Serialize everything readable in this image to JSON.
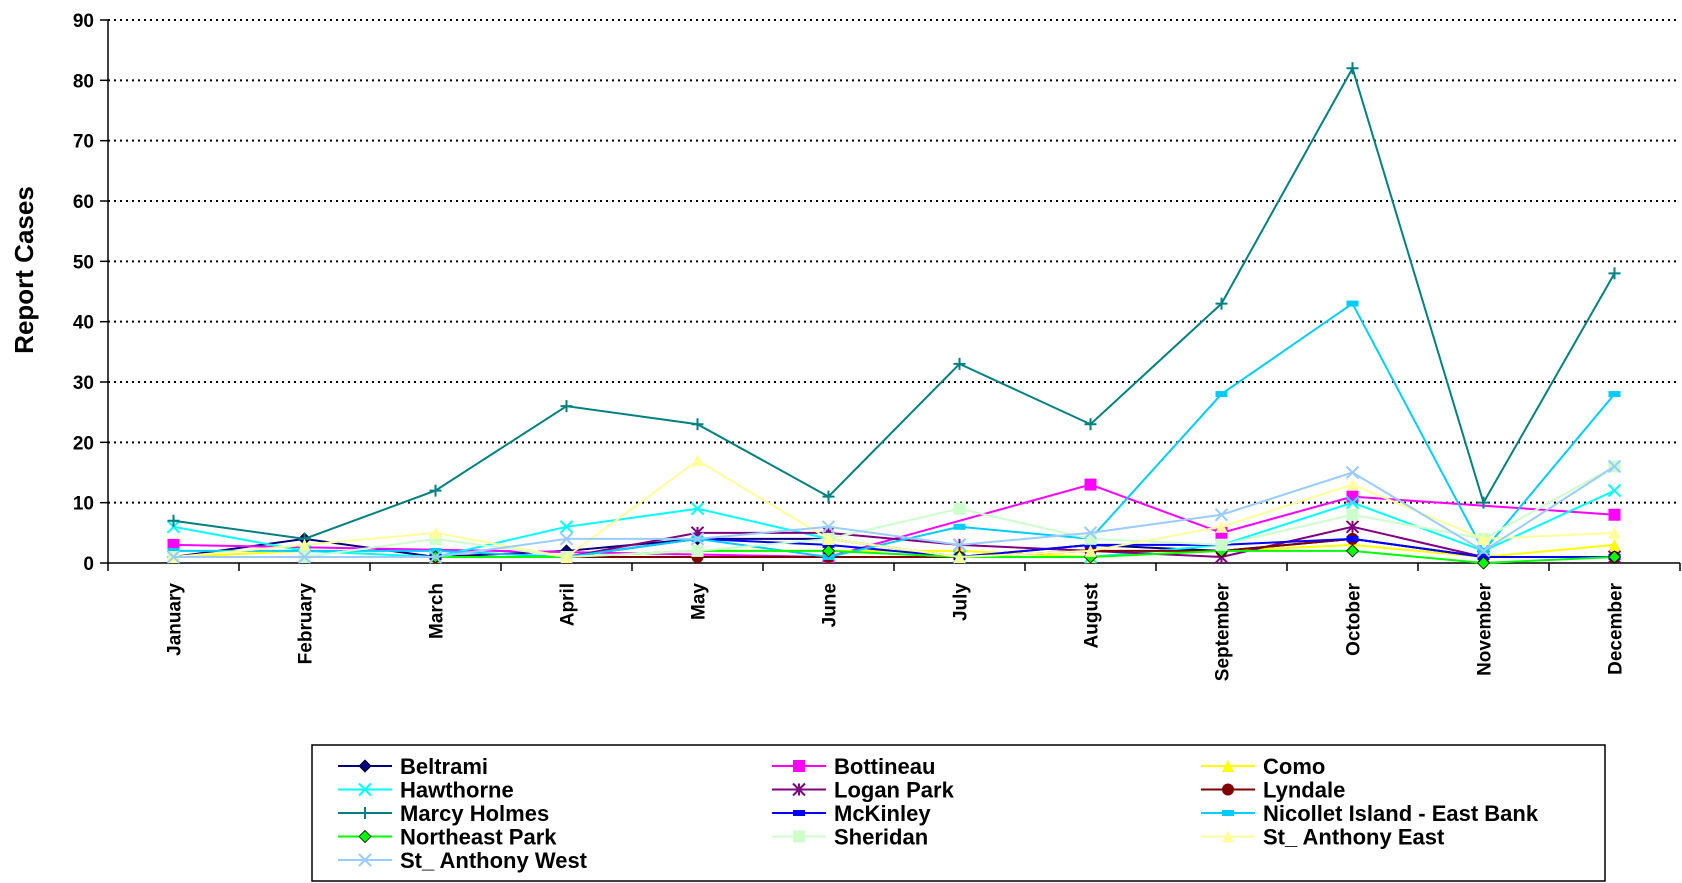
{
  "chart_data": {
    "type": "line",
    "title": "",
    "xlabel": "",
    "ylabel": "Report Cases",
    "ylim": [
      0,
      90
    ],
    "y_ticks": [
      0,
      10,
      20,
      30,
      40,
      50,
      60,
      70,
      80,
      90
    ],
    "grid": "horizontal dotted",
    "legend_position": "bottom",
    "categories": [
      "January",
      "February",
      "March",
      "April",
      "May",
      "June",
      "July",
      "August",
      "September",
      "October",
      "November",
      "December"
    ],
    "series": [
      {
        "name": "Beltrami",
        "color": "#000080",
        "marker": "diamond",
        "values": [
          1,
          4,
          1,
          2,
          4,
          4,
          1,
          3,
          2,
          4,
          1,
          1
        ]
      },
      {
        "name": "Bottineau",
        "color": "#FF00FF",
        "marker": "square",
        "values": [
          3,
          null,
          null,
          null,
          null,
          1,
          null,
          13,
          5,
          11,
          null,
          8
        ]
      },
      {
        "name": "Como",
        "color": "#FFFF00",
        "marker": "triangle",
        "values": [
          1,
          2,
          1,
          1,
          2,
          2,
          2,
          1,
          2,
          3,
          1,
          3
        ]
      },
      {
        "name": "Hawthorne",
        "color": "#00FFFF",
        "marker": "x",
        "values": [
          6,
          2,
          1,
          6,
          9,
          4,
          1,
          1,
          3,
          10,
          2,
          12
        ]
      },
      {
        "name": "Logan Park",
        "color": "#800080",
        "marker": "star",
        "values": [
          1,
          1,
          1,
          1,
          5,
          5,
          3,
          2,
          1,
          6,
          1,
          1
        ]
      },
      {
        "name": "Lyndale",
        "color": "#800000",
        "marker": "circle",
        "values": [
          1,
          1,
          1,
          1,
          1,
          1,
          1,
          2,
          2,
          4,
          1,
          1
        ]
      },
      {
        "name": "Marcy Holmes",
        "color": "#008080",
        "marker": "plus",
        "values": [
          7,
          4,
          12,
          26,
          23,
          11,
          33,
          23,
          43,
          82,
          10,
          48
        ]
      },
      {
        "name": "McKinley",
        "color": "#0000FF",
        "marker": "dash",
        "values": [
          1,
          1,
          1,
          1,
          4,
          3,
          1,
          3,
          3,
          4,
          1,
          1
        ]
      },
      {
        "name": "Nicollet Island - East Bank",
        "color": "#00CCFF",
        "marker": "dash",
        "values": [
          2,
          2,
          2,
          1,
          4,
          1,
          6,
          4,
          28,
          43,
          2,
          28
        ]
      },
      {
        "name": "Northeast Park",
        "color": "#00FF00",
        "marker": "diamond",
        "values": [
          1,
          1,
          1,
          1,
          2,
          2,
          1,
          1,
          2,
          2,
          0,
          1
        ]
      },
      {
        "name": "Sheridan",
        "color": "#CCFFCC",
        "marker": "square",
        "values": [
          1,
          1,
          4,
          1,
          2,
          4,
          9,
          4,
          3,
          8,
          4,
          16
        ]
      },
      {
        "name": "St_ Anthony East",
        "color": "#FFFF99",
        "marker": "triangle",
        "values": [
          1,
          3,
          5,
          1,
          17,
          4,
          1,
          2,
          6,
          13,
          4,
          5
        ]
      },
      {
        "name": "St_ Anthony West",
        "color": "#99CCFF",
        "marker": "x",
        "values": [
          1,
          1,
          1,
          4,
          4,
          6,
          3,
          5,
          8,
          15,
          2,
          16
        ]
      }
    ]
  }
}
